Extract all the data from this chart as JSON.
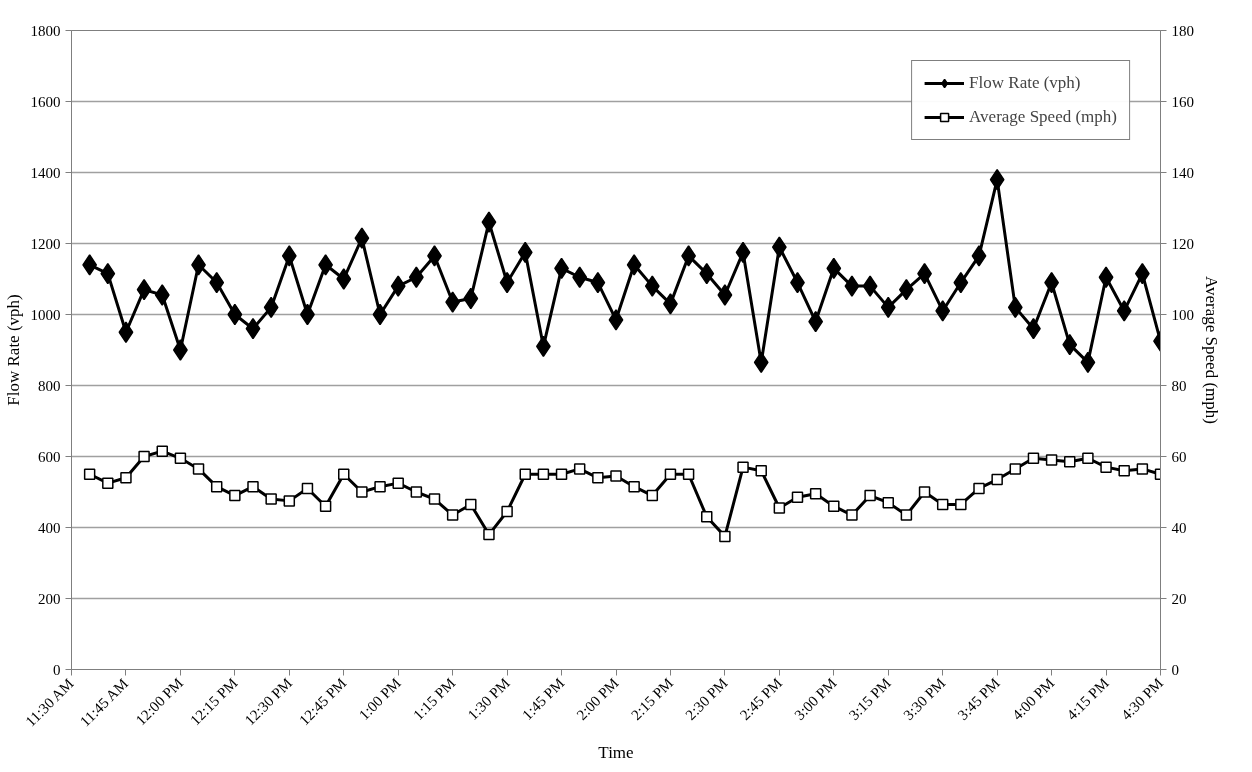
{
  "chart_data": {
    "type": "line",
    "xlabel": "Time",
    "ylabel": "Flow Rate (vph)",
    "y2label": "Average Speed (mph)",
    "x": [
      11.5833,
      11.6667,
      11.75,
      11.8333,
      11.9167,
      12,
      12.0833,
      12.1667,
      12.25,
      12.3333,
      12.4167,
      12.5,
      12.5833,
      12.6667,
      12.75,
      12.8333,
      12.9167,
      13,
      13.0833,
      13.1667,
      13.25,
      13.3333,
      13.4167,
      13.5,
      13.5833,
      13.6667,
      13.75,
      13.8333,
      13.9167,
      14,
      14.0833,
      14.1667,
      14.25,
      14.3333,
      14.4167,
      14.5,
      14.5833,
      14.6667,
      14.75,
      14.8333,
      14.9167,
      15,
      15.0833,
      15.1667,
      15.25,
      15.3333,
      15.4167,
      15.5,
      15.5833,
      15.6667,
      15.75,
      15.8333,
      15.9167,
      16,
      16.0833,
      16.1667,
      16.25,
      16.3333,
      16.4167,
      16.5
    ],
    "series": [
      {
        "name": "Flow Rate (vph)",
        "color": "#000000",
        "marker": "diamond",
        "values": [
          1140,
          1115,
          950,
          1070,
          1055,
          900,
          1140,
          1090,
          1000,
          960,
          1020,
          1165,
          1000,
          1140,
          1100,
          1215,
          1000,
          1080,
          1105,
          1165,
          1035,
          1045,
          1260,
          1090,
          1175,
          910,
          1130,
          1105,
          1090,
          985,
          1140,
          1080,
          1030,
          1165,
          1115,
          1055,
          1175,
          865,
          1190,
          1090,
          980,
          1130,
          1080,
          1080,
          1020,
          1070,
          1115,
          1010,
          1090,
          1165,
          1380,
          1020,
          960,
          1090,
          915,
          865,
          1105,
          1010,
          1115,
          925
        ]
      },
      {
        "name": "Average Speed (mph)",
        "color": "#000000",
        "marker": "square",
        "axis": "y2",
        "values": [
          55,
          52.5,
          54,
          60,
          61.5,
          59.5,
          56.5,
          51.5,
          49,
          51.5,
          48,
          47.5,
          51,
          46,
          55,
          50,
          51.5,
          52.5,
          50,
          48,
          43.5,
          46.5,
          38,
          44.5,
          55,
          55,
          55,
          56.5,
          54,
          54.5,
          51.5,
          49,
          55,
          55,
          43,
          37.5,
          57,
          56,
          45.5,
          48.5,
          49.5,
          46,
          43.5,
          49,
          47,
          43.5,
          50,
          46.5,
          46.5,
          51,
          53.5,
          56.5,
          59.5,
          59,
          58.5,
          59.5,
          57,
          56,
          56.5,
          55
        ]
      }
    ],
    "xlim": [
      11.5,
      16.5
    ],
    "xticks": [
      {
        "value": 11.5,
        "label": "11:30 AM"
      },
      {
        "value": 11.75,
        "label": "11:45 AM"
      },
      {
        "value": 12,
        "label": "12:00 PM"
      },
      {
        "value": 12.25,
        "label": "12:15 PM"
      },
      {
        "value": 12.5,
        "label": "12:30 PM"
      },
      {
        "value": 12.75,
        "label": "12:45 PM"
      },
      {
        "value": 13,
        "label": "1:00 PM"
      },
      {
        "value": 13.25,
        "label": "1:15 PM"
      },
      {
        "value": 13.5,
        "label": "1:30 PM"
      },
      {
        "value": 13.75,
        "label": "1:45 PM"
      },
      {
        "value": 14,
        "label": "2:00 PM"
      },
      {
        "value": 14.25,
        "label": "2:15 PM"
      },
      {
        "value": 14.5,
        "label": "2:30 PM"
      },
      {
        "value": 14.75,
        "label": "2:45 PM"
      },
      {
        "value": 15,
        "label": "3:00 PM"
      },
      {
        "value": 15.25,
        "label": "3:15 PM"
      },
      {
        "value": 15.5,
        "label": "3:30 PM"
      },
      {
        "value": 15.75,
        "label": "3:45 PM"
      },
      {
        "value": 16,
        "label": "4:00 PM"
      },
      {
        "value": 16.25,
        "label": "4:15 PM"
      },
      {
        "value": 16.5,
        "label": "4:30 PM"
      }
    ],
    "ylim": [
      0,
      1800
    ],
    "yticks": [
      0,
      200,
      400,
      600,
      800,
      1000,
      1200,
      1400,
      1600,
      1800
    ],
    "y2lim": [
      0,
      180
    ],
    "y2ticks": [
      0,
      20,
      40,
      60,
      80,
      100,
      120,
      140,
      160,
      180
    ],
    "grid": "y",
    "legend": "top right",
    "line_style": "solid"
  }
}
